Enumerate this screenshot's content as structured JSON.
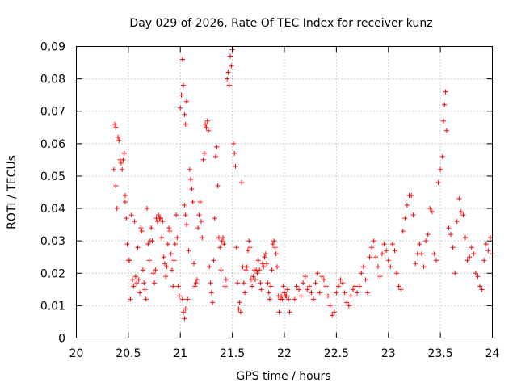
{
  "chart_data": {
    "type": "scatter",
    "title": "Day 029 of 2026, Rate Of TEC Index for receiver kunz",
    "xlabel": "GPS time / hours",
    "ylabel": "ROTI / TECUs",
    "xlim": [
      20,
      24
    ],
    "ylim": [
      0,
      0.09
    ],
    "xticks": [
      20,
      20.5,
      21,
      21.5,
      22,
      22.5,
      23,
      23.5,
      24
    ],
    "xtick_labels": [
      "20",
      "20.5",
      "21",
      "21.5",
      "22",
      "22.5",
      "23",
      "23.5",
      "24"
    ],
    "yticks": [
      0,
      0.01,
      0.02,
      0.03,
      0.04,
      0.05,
      0.06,
      0.07,
      0.08,
      0.09
    ],
    "ytick_labels": [
      "0",
      "0.01",
      "0.02",
      "0.03",
      "0.04",
      "0.05",
      "0.06",
      "0.07",
      "0.08",
      "0.09"
    ],
    "grid": true,
    "marker": "+",
    "marker_color": "#ff0000",
    "series": [
      {
        "points": [
          [
            20.36,
            0.052
          ],
          [
            20.37,
            0.066
          ],
          [
            20.38,
            0.065
          ],
          [
            20.38,
            0.047
          ],
          [
            20.39,
            0.04
          ],
          [
            20.4,
            0.062
          ],
          [
            20.41,
            0.061
          ],
          [
            20.42,
            0.055
          ],
          [
            20.43,
            0.054
          ],
          [
            20.44,
            0.052
          ],
          [
            20.45,
            0.055
          ],
          [
            20.46,
            0.057
          ],
          [
            20.47,
            0.044
          ],
          [
            20.47,
            0.042
          ],
          [
            20.48,
            0.037
          ],
          [
            20.49,
            0.029
          ],
          [
            20.5,
            0.024
          ],
          [
            20.51,
            0.024
          ],
          [
            20.52,
            0.012
          ],
          [
            20.53,
            0.038
          ],
          [
            20.54,
            0.018
          ],
          [
            20.55,
            0.016
          ],
          [
            20.56,
            0.036
          ],
          [
            20.57,
            0.019
          ],
          [
            20.58,
            0.017
          ],
          [
            20.59,
            0.028
          ],
          [
            20.6,
            0.018
          ],
          [
            20.61,
            0.014
          ],
          [
            20.62,
            0.034
          ],
          [
            20.63,
            0.033
          ],
          [
            20.64,
            0.021
          ],
          [
            20.65,
            0.017
          ],
          [
            20.66,
            0.015
          ],
          [
            20.67,
            0.012
          ],
          [
            20.68,
            0.04
          ],
          [
            20.69,
            0.029
          ],
          [
            20.7,
            0.024
          ],
          [
            20.71,
            0.03
          ],
          [
            20.72,
            0.034
          ],
          [
            20.73,
            0.03
          ],
          [
            20.74,
            0.02
          ],
          [
            20.75,
            0.017
          ],
          [
            20.76,
            0.021
          ],
          [
            20.77,
            0.037
          ],
          [
            20.78,
            0.036
          ],
          [
            20.79,
            0.038
          ],
          [
            20.8,
            0.037
          ],
          [
            20.81,
            0.037
          ],
          [
            20.82,
            0.031
          ],
          [
            20.83,
            0.036
          ],
          [
            20.84,
            0.025
          ],
          [
            20.85,
            0.023
          ],
          [
            20.86,
            0.019
          ],
          [
            20.87,
            0.022
          ],
          [
            20.88,
            0.029
          ],
          [
            20.89,
            0.034
          ],
          [
            20.9,
            0.033
          ],
          [
            20.91,
            0.026
          ],
          [
            20.92,
            0.021
          ],
          [
            20.93,
            0.016
          ],
          [
            20.94,
            0.024
          ],
          [
            20.95,
            0.029
          ],
          [
            20.96,
            0.038
          ],
          [
            20.97,
            0.031
          ],
          [
            20.98,
            0.016
          ],
          [
            20.99,
            0.013
          ],
          [
            21.0,
            0.071
          ],
          [
            21.01,
            0.075
          ],
          [
            21.02,
            0.086
          ],
          [
            21.03,
            0.078
          ],
          [
            21.04,
            0.069
          ],
          [
            21.05,
            0.066
          ],
          [
            21.06,
            0.073
          ],
          [
            21.04,
            0.041
          ],
          [
            21.05,
            0.038
          ],
          [
            21.06,
            0.035
          ],
          [
            21.02,
            0.012
          ],
          [
            21.03,
            0.008
          ],
          [
            21.04,
            0.006
          ],
          [
            21.05,
            0.009
          ],
          [
            21.07,
            0.012
          ],
          [
            21.08,
            0.027
          ],
          [
            21.09,
            0.052
          ],
          [
            21.1,
            0.049
          ],
          [
            21.11,
            0.046
          ],
          [
            21.12,
            0.042
          ],
          [
            21.13,
            0.023
          ],
          [
            21.14,
            0.016
          ],
          [
            21.15,
            0.017
          ],
          [
            21.16,
            0.018
          ],
          [
            21.17,
            0.034
          ],
          [
            21.18,
            0.038
          ],
          [
            21.19,
            0.042
          ],
          [
            21.2,
            0.036
          ],
          [
            21.21,
            0.031
          ],
          [
            21.22,
            0.055
          ],
          [
            21.23,
            0.057
          ],
          [
            21.24,
            0.066
          ],
          [
            21.25,
            0.065
          ],
          [
            21.26,
            0.067
          ],
          [
            21.27,
            0.064
          ],
          [
            21.28,
            0.022
          ],
          [
            21.29,
            0.017
          ],
          [
            21.3,
            0.014
          ],
          [
            21.31,
            0.011
          ],
          [
            21.32,
            0.024
          ],
          [
            21.33,
            0.037
          ],
          [
            21.34,
            0.056
          ],
          [
            21.35,
            0.059
          ],
          [
            21.36,
            0.047
          ],
          [
            21.37,
            0.031
          ],
          [
            21.38,
            0.028
          ],
          [
            21.39,
            0.021
          ],
          [
            21.4,
            0.03
          ],
          [
            21.41,
            0.031
          ],
          [
            21.42,
            0.029
          ],
          [
            21.43,
            0.016
          ],
          [
            21.44,
            0.018
          ],
          [
            21.45,
            0.08
          ],
          [
            21.46,
            0.082
          ],
          [
            21.47,
            0.078
          ],
          [
            21.48,
            0.087
          ],
          [
            21.49,
            0.084
          ],
          [
            21.5,
            0.089
          ],
          [
            21.51,
            0.06
          ],
          [
            21.52,
            0.057
          ],
          [
            21.53,
            0.053
          ],
          [
            21.54,
            0.028
          ],
          [
            21.55,
            0.017
          ],
          [
            21.56,
            0.009
          ],
          [
            21.57,
            0.011
          ],
          [
            21.58,
            0.008
          ],
          [
            21.59,
            0.048
          ],
          [
            21.6,
            0.022
          ],
          [
            21.61,
            0.017
          ],
          [
            21.62,
            0.014
          ],
          [
            21.63,
            0.021
          ],
          [
            21.64,
            0.022
          ],
          [
            21.65,
            0.027
          ],
          [
            21.66,
            0.03
          ],
          [
            21.67,
            0.028
          ],
          [
            21.68,
            0.018
          ],
          [
            21.69,
            0.016
          ],
          [
            21.7,
            0.019
          ],
          [
            21.71,
            0.021
          ],
          [
            21.72,
            0.018
          ],
          [
            21.73,
            0.021
          ],
          [
            21.74,
            0.02
          ],
          [
            21.75,
            0.024
          ],
          [
            21.76,
            0.021
          ],
          [
            21.77,
            0.017
          ],
          [
            21.78,
            0.015
          ],
          [
            21.79,
            0.023
          ],
          [
            21.8,
            0.022
          ],
          [
            21.81,
            0.025
          ],
          [
            21.82,
            0.026
          ],
          [
            21.83,
            0.023
          ],
          [
            21.84,
            0.017
          ],
          [
            21.85,
            0.014
          ],
          [
            21.86,
            0.012
          ],
          [
            21.87,
            0.016
          ],
          [
            21.88,
            0.021
          ],
          [
            21.89,
            0.029
          ],
          [
            21.9,
            0.03
          ],
          [
            21.91,
            0.028
          ],
          [
            21.92,
            0.026
          ],
          [
            21.93,
            0.022
          ],
          [
            21.94,
            0.013
          ],
          [
            21.95,
            0.008
          ],
          [
            21.96,
            0.012
          ],
          [
            21.97,
            0.013
          ],
          [
            21.98,
            0.012
          ],
          [
            21.99,
            0.016
          ],
          [
            22.0,
            0.014
          ],
          [
            22.01,
            0.013
          ],
          [
            22.02,
            0.013
          ],
          [
            22.03,
            0.015
          ],
          [
            22.04,
            0.012
          ],
          [
            22.05,
            0.008
          ],
          [
            22.1,
            0.012
          ],
          [
            22.12,
            0.016
          ],
          [
            22.14,
            0.015
          ],
          [
            22.16,
            0.013
          ],
          [
            22.18,
            0.017
          ],
          [
            22.2,
            0.019
          ],
          [
            22.22,
            0.015
          ],
          [
            22.24,
            0.016
          ],
          [
            22.26,
            0.014
          ],
          [
            22.28,
            0.012
          ],
          [
            22.3,
            0.017
          ],
          [
            22.32,
            0.02
          ],
          [
            22.34,
            0.014
          ],
          [
            22.36,
            0.019
          ],
          [
            22.38,
            0.018
          ],
          [
            22.4,
            0.016
          ],
          [
            22.42,
            0.013
          ],
          [
            22.44,
            0.01
          ],
          [
            22.46,
            0.007
          ],
          [
            22.48,
            0.008
          ],
          [
            22.5,
            0.014
          ],
          [
            22.52,
            0.016
          ],
          [
            22.54,
            0.018
          ],
          [
            22.56,
            0.017
          ],
          [
            22.58,
            0.014
          ],
          [
            22.6,
            0.011
          ],
          [
            22.62,
            0.01
          ],
          [
            22.64,
            0.013
          ],
          [
            22.66,
            0.015
          ],
          [
            22.68,
            0.016
          ],
          [
            22.7,
            0.014
          ],
          [
            22.72,
            0.016
          ],
          [
            22.74,
            0.02
          ],
          [
            22.76,
            0.022
          ],
          [
            22.78,
            0.018
          ],
          [
            22.8,
            0.014
          ],
          [
            22.82,
            0.025
          ],
          [
            22.84,
            0.028
          ],
          [
            22.86,
            0.03
          ],
          [
            22.88,
            0.025
          ],
          [
            22.9,
            0.022
          ],
          [
            22.92,
            0.019
          ],
          [
            22.94,
            0.026
          ],
          [
            22.96,
            0.029
          ],
          [
            22.98,
            0.027
          ],
          [
            23.0,
            0.024
          ],
          [
            23.02,
            0.022
          ],
          [
            23.04,
            0.029
          ],
          [
            23.06,
            0.027
          ],
          [
            23.08,
            0.02
          ],
          [
            23.1,
            0.016
          ],
          [
            23.12,
            0.015
          ],
          [
            23.14,
            0.033
          ],
          [
            23.16,
            0.037
          ],
          [
            23.18,
            0.041
          ],
          [
            23.2,
            0.044
          ],
          [
            23.22,
            0.044
          ],
          [
            23.24,
            0.038
          ],
          [
            23.26,
            0.023
          ],
          [
            23.28,
            0.026
          ],
          [
            23.3,
            0.029
          ],
          [
            23.32,
            0.026
          ],
          [
            23.34,
            0.022
          ],
          [
            23.36,
            0.03
          ],
          [
            23.38,
            0.032
          ],
          [
            23.4,
            0.04
          ],
          [
            23.42,
            0.039
          ],
          [
            23.44,
            0.026
          ],
          [
            23.46,
            0.024
          ],
          [
            23.48,
            0.048
          ],
          [
            23.5,
            0.052
          ],
          [
            23.52,
            0.056
          ],
          [
            23.53,
            0.067
          ],
          [
            23.54,
            0.072
          ],
          [
            23.55,
            0.076
          ],
          [
            23.56,
            0.064
          ],
          [
            23.58,
            0.034
          ],
          [
            23.6,
            0.032
          ],
          [
            23.62,
            0.028
          ],
          [
            23.64,
            0.02
          ],
          [
            23.66,
            0.036
          ],
          [
            23.68,
            0.043
          ],
          [
            23.7,
            0.039
          ],
          [
            23.72,
            0.038
          ],
          [
            23.74,
            0.031
          ],
          [
            23.76,
            0.024
          ],
          [
            23.78,
            0.025
          ],
          [
            23.8,
            0.028
          ],
          [
            23.82,
            0.026
          ],
          [
            23.84,
            0.02
          ],
          [
            23.86,
            0.019
          ],
          [
            23.88,
            0.016
          ],
          [
            23.9,
            0.015
          ],
          [
            23.92,
            0.024
          ],
          [
            23.94,
            0.029
          ],
          [
            23.96,
            0.027
          ],
          [
            23.98,
            0.031
          ],
          [
            24.0,
            0.026
          ]
        ]
      }
    ]
  }
}
